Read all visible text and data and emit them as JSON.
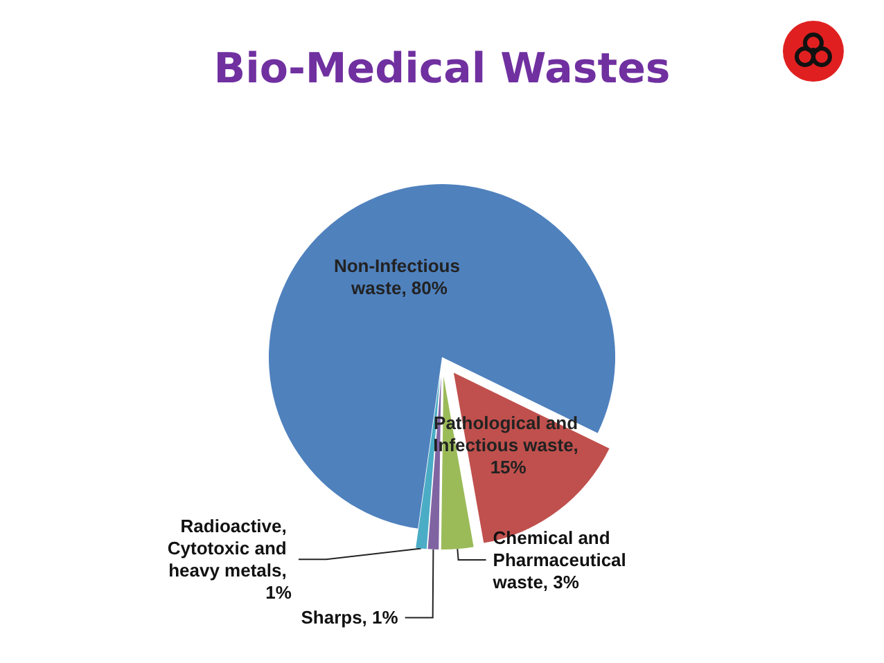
{
  "chart_data": {
    "type": "pie",
    "title": "Bio-Medical Wastes",
    "categories": [
      "Non-Infectious waste, 80%",
      "Pathological and Infectious waste, 15%",
      "Chemical and Pharmaceutical waste, 3%",
      "Sharps, 1%",
      "Radioactive, Cytotoxic and heavy metals, 1%"
    ],
    "values": [
      80,
      15,
      3,
      1,
      1
    ],
    "colors": [
      "#4f81bd",
      "#c0504d",
      "#9bbb59",
      "#8064a2",
      "#4bacc6"
    ],
    "legend": false
  }
}
